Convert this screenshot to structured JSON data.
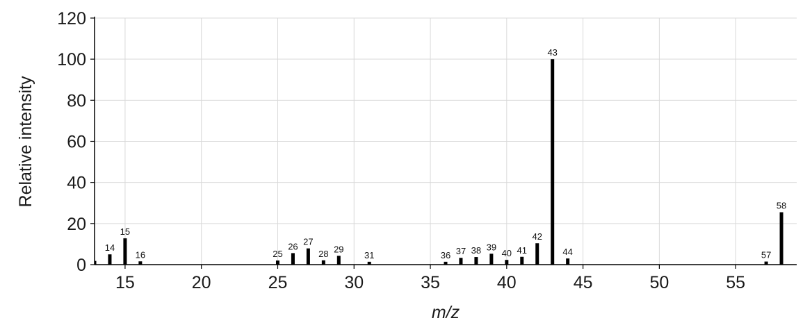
{
  "chart_data": {
    "type": "bar",
    "title": "",
    "xlabel": "m/z",
    "ylabel": "Relative intensity",
    "xlim": [
      13,
      59
    ],
    "ylim": [
      0,
      120
    ],
    "xticks": [
      15,
      20,
      25,
      30,
      35,
      40,
      45,
      50,
      55
    ],
    "yticks": [
      0,
      20,
      40,
      60,
      80,
      100,
      120
    ],
    "grid": true,
    "bar_color": "#000000",
    "series": [
      {
        "peaks": [
          {
            "mz": 13,
            "intensity": 1.8,
            "label": ""
          },
          {
            "mz": 14,
            "intensity": 5.0,
            "label": "14"
          },
          {
            "mz": 15,
            "intensity": 12.8,
            "label": "15"
          },
          {
            "mz": 16,
            "intensity": 1.6,
            "label": "16"
          },
          {
            "mz": 25,
            "intensity": 2.0,
            "label": "25"
          },
          {
            "mz": 26,
            "intensity": 5.6,
            "label": "26"
          },
          {
            "mz": 27,
            "intensity": 7.9,
            "label": "27"
          },
          {
            "mz": 28,
            "intensity": 2.1,
            "label": "28"
          },
          {
            "mz": 29,
            "intensity": 4.3,
            "label": "29"
          },
          {
            "mz": 31,
            "intensity": 1.4,
            "label": "31"
          },
          {
            "mz": 36,
            "intensity": 1.4,
            "label": "36"
          },
          {
            "mz": 37,
            "intensity": 3.3,
            "label": "37"
          },
          {
            "mz": 38,
            "intensity": 3.7,
            "label": "38"
          },
          {
            "mz": 39,
            "intensity": 5.3,
            "label": "39"
          },
          {
            "mz": 40,
            "intensity": 2.3,
            "label": "40"
          },
          {
            "mz": 41,
            "intensity": 3.8,
            "label": "41"
          },
          {
            "mz": 42,
            "intensity": 10.4,
            "label": "42"
          },
          {
            "mz": 43,
            "intensity": 100,
            "label": "43"
          },
          {
            "mz": 44,
            "intensity": 3.0,
            "label": "44"
          },
          {
            "mz": 57,
            "intensity": 1.5,
            "label": "57"
          },
          {
            "mz": 58,
            "intensity": 25.5,
            "label": "58"
          }
        ]
      }
    ]
  }
}
